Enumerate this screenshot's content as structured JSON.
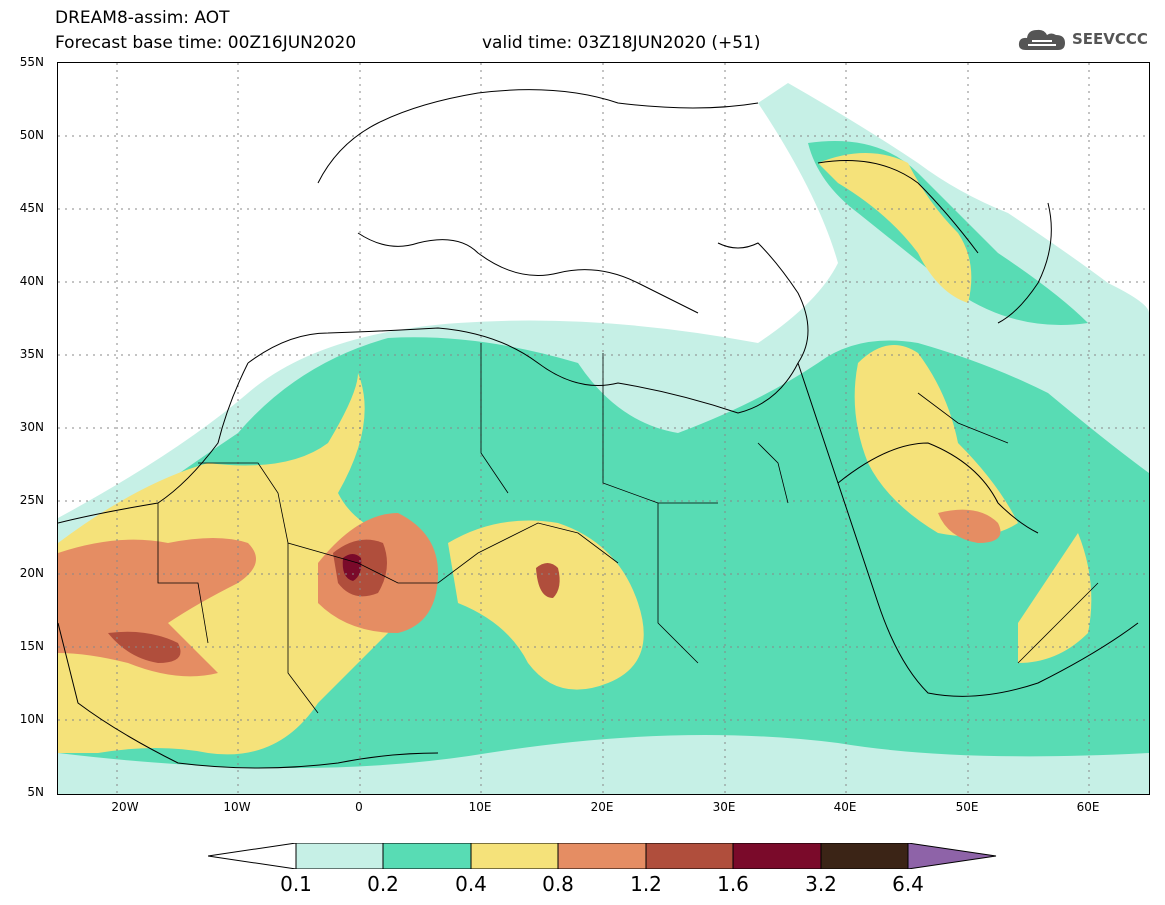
{
  "header": {
    "title_line1": "DREAM8-assim: AOT",
    "title_line2": "Forecast base time: 00Z16JUN2020",
    "valid_time": "valid time: 03Z18JUN2020 (+51)"
  },
  "logo": {
    "text": "SEEVCCC",
    "icon": "cloud-icon"
  },
  "map": {
    "lat_labels": [
      "55N",
      "50N",
      "45N",
      "40N",
      "35N",
      "30N",
      "25N",
      "20N",
      "15N",
      "10N",
      "5N"
    ],
    "lon_labels": [
      "20W",
      "10W",
      "0",
      "10E",
      "20E",
      "30E",
      "40E",
      "50E",
      "60E"
    ]
  },
  "colorbar": {
    "labels": [
      "0.1",
      "0.2",
      "0.4",
      "0.8",
      "1.2",
      "1.6",
      "3.2",
      "6.4"
    ],
    "colors": [
      "#c6f0e6",
      "#58dcb4",
      "#f5e27a",
      "#e58d63",
      "#b04e3c",
      "#7a0a2a",
      "#3b2416",
      "#8e63a8"
    ]
  }
}
